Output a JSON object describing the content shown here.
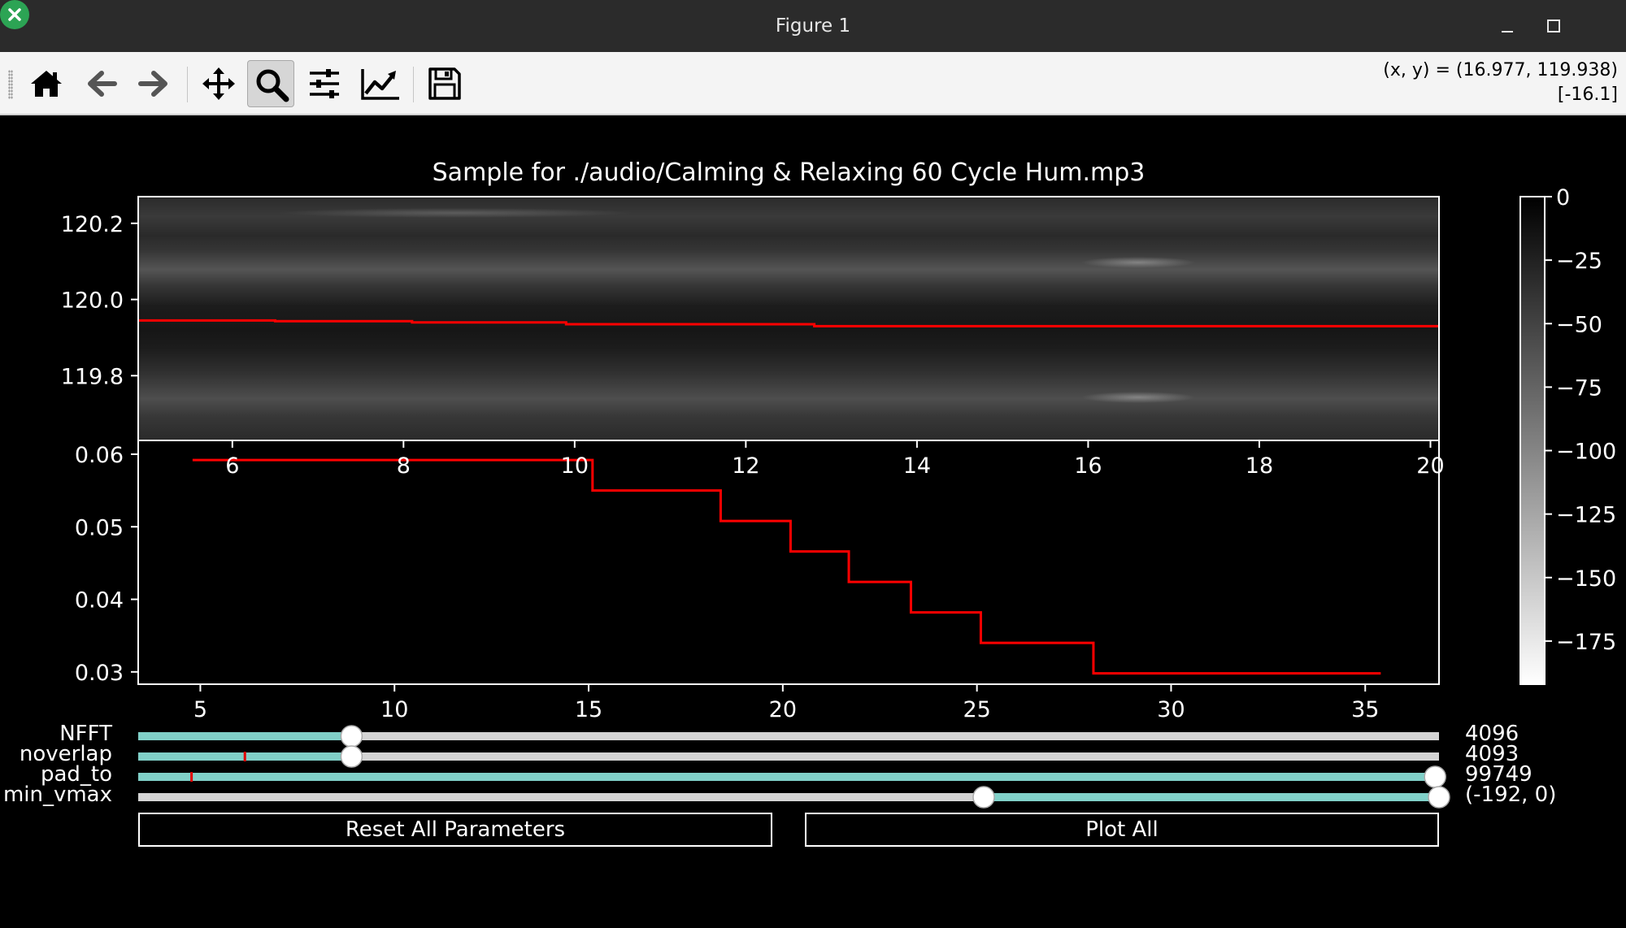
{
  "window": {
    "title": "Figure 1"
  },
  "toolbar": {
    "buttons": [
      {
        "name": "home-icon",
        "tooltip": "Home"
      },
      {
        "name": "back-arrow-icon",
        "tooltip": "Back"
      },
      {
        "name": "forward-arrow-icon",
        "tooltip": "Forward"
      },
      {
        "name": "pan-icon",
        "tooltip": "Pan"
      },
      {
        "name": "zoom-icon",
        "tooltip": "Zoom",
        "active": true
      },
      {
        "name": "subplots-icon",
        "tooltip": "Subplots"
      },
      {
        "name": "edit-axis-icon",
        "tooltip": "Customize"
      },
      {
        "name": "save-icon",
        "tooltip": "Save"
      }
    ],
    "coords_line1": "(x, y) = (16.977, 119.938)",
    "coords_line2": "[-16.1]"
  },
  "chart_data": [
    {
      "type": "heatmap",
      "title": "Sample for ./audio/Calming & Relaxing 60 Cycle Hum.mp3",
      "colormap": "gray",
      "xlim": [
        4.9,
        20.1
      ],
      "ylim": [
        119.63,
        120.27
      ],
      "x_ticks": [
        6,
        8,
        10,
        12,
        14,
        16,
        18,
        20
      ],
      "x_tick_labels": [
        "6",
        "8",
        "10",
        "12",
        "14",
        "16",
        "18",
        "20"
      ],
      "y_ticks": [
        119.8,
        120.0,
        120.2
      ],
      "y_tick_labels": [
        "119.8",
        "120.0",
        "120.2"
      ],
      "peak_line": {
        "color": "#ff0000",
        "x": [
          4.9,
          6.5,
          6.5,
          8.1,
          8.1,
          9.9,
          9.9,
          12.8,
          12.8,
          20.1
        ],
        "y": [
          119.945,
          119.945,
          119.943,
          119.943,
          119.94,
          119.94,
          119.935,
          119.935,
          119.93,
          119.93
        ]
      }
    },
    {
      "type": "line",
      "xlim": [
        3.4,
        36.9
      ],
      "ylim": [
        0.0283,
        0.0619
      ],
      "x_ticks": [
        5,
        10,
        15,
        20,
        25,
        30,
        35
      ],
      "x_tick_labels": [
        "5",
        "10",
        "15",
        "20",
        "25",
        "30",
        "35"
      ],
      "y_ticks": [
        0.03,
        0.04,
        0.05,
        0.06
      ],
      "y_tick_labels": [
        "0.03",
        "0.04",
        "0.05",
        "0.06"
      ],
      "series": [
        {
          "color": "#ff0000",
          "x": [
            4.8,
            15.1,
            15.1,
            18.4,
            18.4,
            20.2,
            20.2,
            21.7,
            21.7,
            23.3,
            23.3,
            25.1,
            25.1,
            28.0,
            28.0,
            35.4
          ],
          "y": [
            0.0592,
            0.0592,
            0.055,
            0.055,
            0.0508,
            0.0508,
            0.0466,
            0.0466,
            0.0424,
            0.0424,
            0.0382,
            0.0382,
            0.034,
            0.034,
            0.0298,
            0.0298
          ]
        }
      ]
    },
    {
      "type": "colorbar",
      "colormap": "gray",
      "range": [
        -192,
        0
      ],
      "ticks": [
        0,
        -25,
        -50,
        -75,
        -100,
        -125,
        -150,
        -175
      ],
      "tick_labels": [
        "0",
        "−25",
        "−50",
        "−75",
        "−100",
        "−125",
        "−150",
        "−175"
      ]
    }
  ],
  "controls": {
    "sliders": [
      {
        "label": "NFFT",
        "value_text": "4096",
        "fraction": 0.164,
        "marker_fraction": null
      },
      {
        "label": "noverlap",
        "value_text": "4093",
        "fraction": 0.164,
        "marker_fraction": 0.082
      },
      {
        "label": "pad_to",
        "value_text": "99749",
        "fraction": 0.997,
        "marker_fraction": 0.041
      },
      {
        "label": "min_vmax",
        "value_text": "(-192, 0)",
        "range_fraction": [
          0.65,
          1.0
        ]
      }
    ],
    "reset_button": "Reset All Parameters",
    "plot_button": "Plot All"
  },
  "colors": {
    "slider_fill": "#80d0c8",
    "slider_track": "#d4d4d4",
    "line": "#ff0000",
    "zoom_active_bg": "#d6d6d6"
  }
}
